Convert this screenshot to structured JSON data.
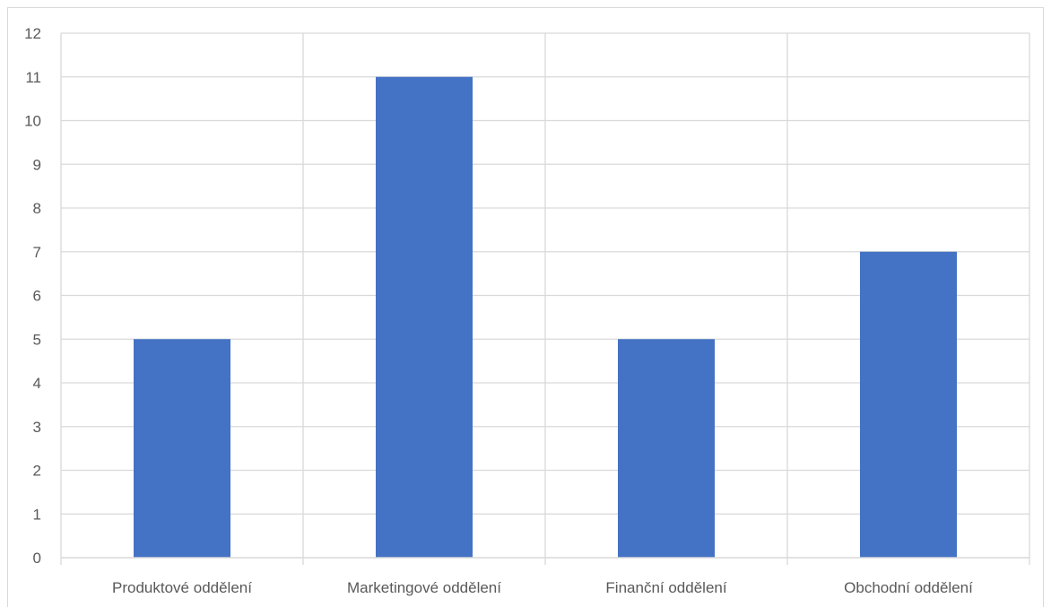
{
  "chart_data": {
    "type": "bar",
    "categories": [
      "Produktové oddělení",
      "Marketingové oddělení",
      "Finanční oddělení",
      "Obchodní oddělení"
    ],
    "values": [
      5,
      11,
      5,
      7
    ],
    "title": "",
    "xlabel": "",
    "ylabel": "",
    "ylim": [
      0,
      12
    ],
    "yticks": [
      "0",
      "1",
      "2",
      "3",
      "4",
      "5",
      "6",
      "7",
      "8",
      "9",
      "10",
      "11",
      "12"
    ],
    "grid": true,
    "legend": "none",
    "bar_color": "#4472c4",
    "grid_color": "#d9d9d9"
  }
}
